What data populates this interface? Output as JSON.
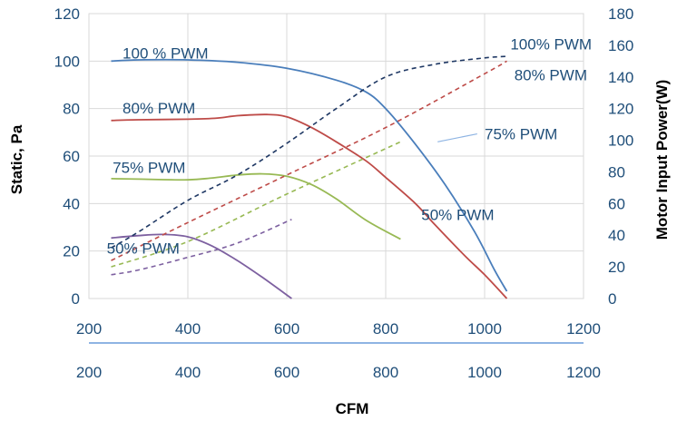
{
  "chart_data": {
    "type": "line",
    "title": "",
    "xlabel": "CFM",
    "ylabel": "Static, Pa",
    "y2label": "Motor Input Power(W)",
    "xlim": [
      200,
      1200
    ],
    "ylim": [
      0,
      120
    ],
    "y2lim": [
      0,
      180
    ],
    "x_ticks": [
      "200",
      "400",
      "600",
      "800",
      "1000",
      "1200"
    ],
    "y_ticks": [
      "0",
      "20",
      "40",
      "60",
      "80",
      "100",
      "120"
    ],
    "y2_ticks": [
      "0",
      "20",
      "40",
      "60",
      "80",
      "100",
      "120",
      "140",
      "160",
      "180"
    ],
    "grid": true,
    "legend": "none",
    "series": [
      {
        "key": "static100",
        "kind": "solid",
        "axis": "left",
        "color": "#4a7ebb",
        "x": [
          245,
          300,
          400,
          500,
          600,
          700,
          760,
          800,
          860,
          920,
          980,
          1020,
          1045
        ],
        "y": [
          100,
          100.5,
          100.5,
          99.5,
          97,
          92,
          87,
          80,
          65,
          48,
          28,
          12,
          3
        ]
      },
      {
        "key": "static80",
        "kind": "solid",
        "axis": "left",
        "color": "#be4b48",
        "x": [
          245,
          300,
          400,
          460,
          500,
          560,
          600,
          650,
          700,
          760,
          800,
          860,
          900,
          960,
          1000,
          1045
        ],
        "y": [
          75,
          75.3,
          75.5,
          76,
          77,
          77.5,
          76.5,
          72,
          66,
          58,
          51,
          40,
          31,
          18,
          10,
          0
        ]
      },
      {
        "key": "static75",
        "kind": "solid",
        "axis": "left",
        "color": "#98b954",
        "x": [
          245,
          300,
          400,
          450,
          500,
          550,
          600,
          650,
          700,
          760,
          830
        ],
        "y": [
          50.5,
          50.3,
          50,
          50.8,
          52,
          52.5,
          51.5,
          48,
          42,
          33,
          25
        ]
      },
      {
        "key": "static50",
        "kind": "solid",
        "axis": "left",
        "color": "#7d60a0",
        "x": [
          245,
          300,
          350,
          400,
          450,
          500,
          550,
          610
        ],
        "y": [
          25.5,
          26.5,
          27,
          26,
          22,
          16,
          9,
          0
        ]
      },
      {
        "key": "power100",
        "kind": "dashed",
        "axis": "right",
        "color": "#1f3864",
        "x": [
          245,
          300,
          400,
          500,
          600,
          700,
          800,
          900,
          1000,
          1045
        ],
        "y": [
          32,
          42,
          62,
          78,
          98,
          120,
          140,
          148,
          152,
          153
        ]
      },
      {
        "key": "power80",
        "kind": "dashed",
        "axis": "right",
        "color": "#be4b48",
        "x": [
          245,
          400,
          600,
          800,
          1000,
          1045
        ],
        "y": [
          24,
          48,
          78,
          108,
          142,
          150
        ]
      },
      {
        "key": "power75",
        "kind": "dashed",
        "axis": "right",
        "color": "#98b954",
        "x": [
          245,
          400,
          600,
          830
        ],
        "y": [
          20,
          36,
          66,
          99
        ]
      },
      {
        "key": "power50",
        "kind": "dashed",
        "axis": "right",
        "color": "#7d60a0",
        "x": [
          245,
          300,
          400,
          500,
          610
        ],
        "y": [
          15,
          18,
          26,
          35,
          50
        ]
      }
    ],
    "annotations": [
      {
        "text": "100 % PWM",
        "x": 268,
        "y": 101
      },
      {
        "text": "80% PWM",
        "x": 268,
        "y": 78
      },
      {
        "text": "75% PWM",
        "x": 248,
        "y": 53
      },
      {
        "text": "50% PWM",
        "x": 236,
        "y": 19
      },
      {
        "text": "100% PWM",
        "x": 1052,
        "y": 105
      },
      {
        "text": "80% PWM",
        "x": 1060,
        "y": 92
      },
      {
        "text": "75% PWM",
        "x": 1000,
        "y": 67
      },
      {
        "text": "50% PWM",
        "x": 872,
        "y": 33
      }
    ]
  }
}
